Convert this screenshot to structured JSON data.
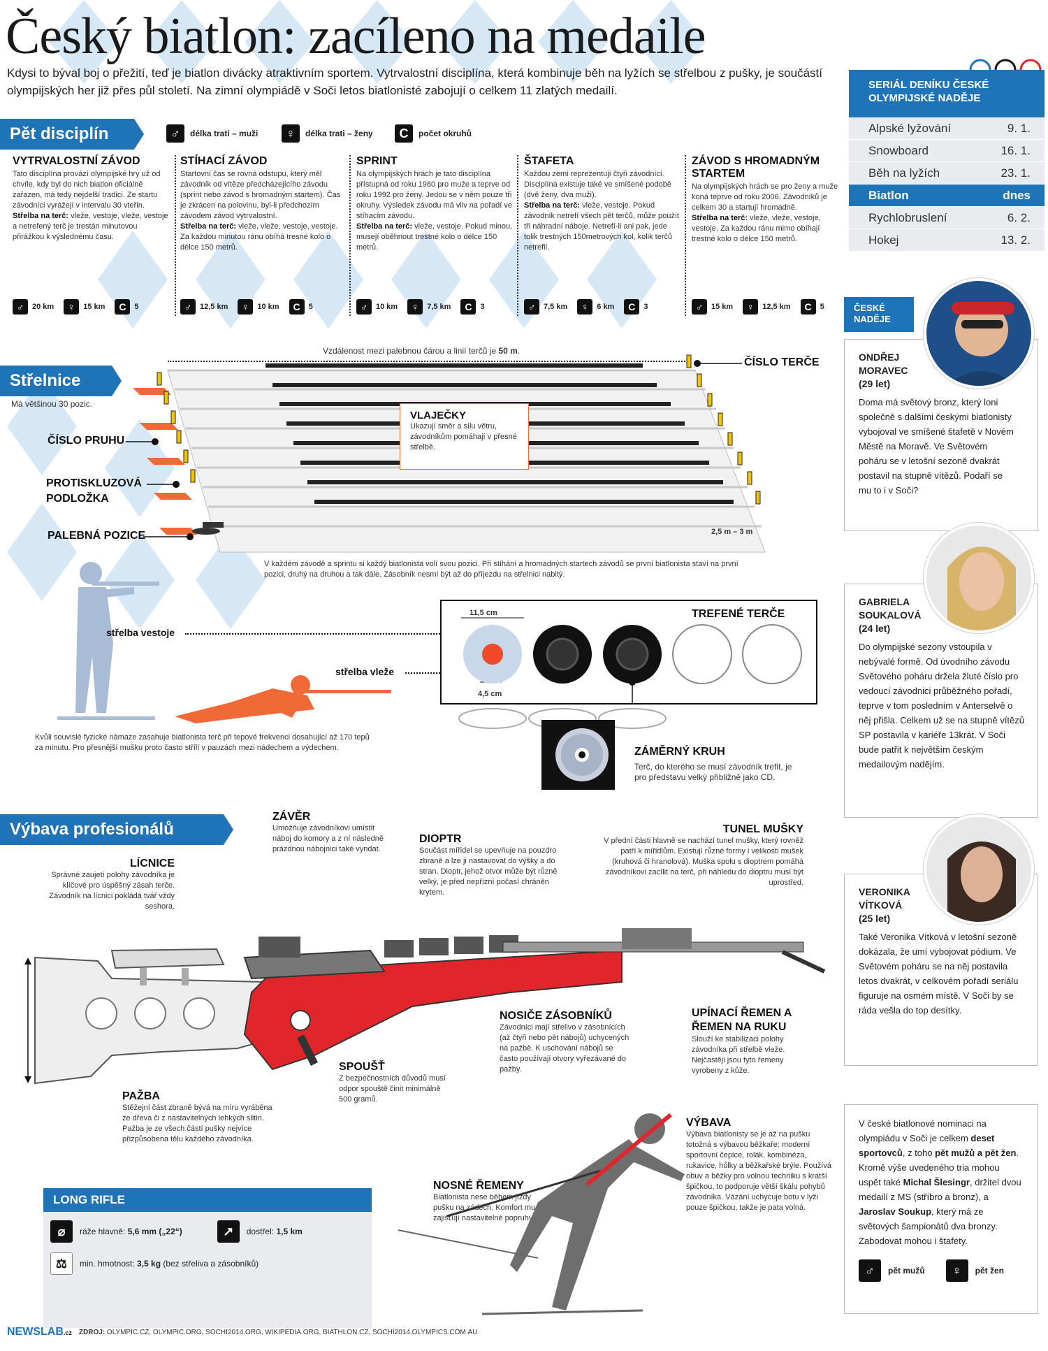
{
  "title": "Český biatlon: zacíleno na medaile",
  "intro": "Kdysi to býval boj o přežití, teď je biatlon divácky atraktivním sportem. Vytrvalostní disciplína, která kombinuje běh na lyžích se střelbou z pušky, je součástí olympijských her již přes půl století. Na zimní olympiádě v Soči letos biatlonisté zabojují o celkem 11 zlatých medailí.",
  "disciplines_section": {
    "heading": "Pět disciplín",
    "legend": [
      {
        "icon": "male-symbol-icon",
        "glyph": "♂",
        "label": "délka trati – muži"
      },
      {
        "icon": "female-symbol-icon",
        "glyph": "♀",
        "label": "délka trati – ženy"
      },
      {
        "icon": "laps-icon",
        "glyph": "C",
        "label": "počet okruhů"
      }
    ],
    "items": [
      {
        "name": "VYTRVALOSTNÍ ZÁVOD",
        "text": "Tato disciplína provází olympijské hry už od chvíle, kdy byl do nich biatlon oficiálně zařazen, má tedy nejdelší tradici. Ze startu závodníci vyrážejí v intervalu 30 vteřin.",
        "shoot_label": "Střelba na terč:",
        "shoot_text": " vleže, vestoje, vleže, vestoje a netrefený terč je trestán minutovou přirážkou k výslednému času.",
        "men": "20 km",
        "women": "15 km",
        "laps": "5"
      },
      {
        "name": "STÍHACÍ ZÁVOD",
        "text": "Startovní čas se rovná odstupu, který měl závodník od vítěze předcházejícího závodu (sprint nebo závod s hromadným startem). Čas je zkrácen na polovinu, byl-li předchozím závodem závod vytrvalostní.",
        "shoot_label": "Střelba na terč:",
        "shoot_text": " vleže, vleže, vestoje, vestoje. Za každou minutou ránu obíhá tresné kolo o délce 150 metrů.",
        "men": "12,5 km",
        "women": "10 km",
        "laps": "5"
      },
      {
        "name": "SPRINT",
        "text": "Na olympijských hrách je tato disciplína přístupná od roku 1980 pro muže a teprve od roku 1992 pro ženy. Jedou se v něm pouze tři okruhy. Výsledek závodu má vliv na pořadí ve stíhacím závodu.",
        "shoot_label": "Střelba na terč:",
        "shoot_text": " vleže, vestoje. Pokud minou, musejí oběhnout trestné kolo o délce 150 metrů.",
        "men": "10 km",
        "women": "7,5 km",
        "laps": "3"
      },
      {
        "name": "ŠTAFETA",
        "text": "Každou zemi reprezentují čtyři závodníci. Disciplína existuje také ve smíšené podobě (dvě ženy, dva muži).",
        "shoot_label": "Střelba na terč:",
        "shoot_text": " vleže, vestoje. Pokud závodník netrefí všech pět terčů, může použít tři náhradní náboje. Netrefí-li ani pak, jede tolik trestných 150metrových kol, kolik terčů netrefil.",
        "men": "7,5 km",
        "women": "6 km",
        "laps": "3"
      },
      {
        "name": "ZÁVOD S HROMADNÝM STARTEM",
        "text": "Na olympijských hrách se pro ženy a muže koná teprve od roku 2006. Závodníků je celkem 30 a startují hromadně.",
        "shoot_label": "Střelba na terč:",
        "shoot_text": " vleže, vleže, vestoje, vestoje. Za každou ránu mimo obíhají trestné kolo o délce 150 metrů.",
        "men": "15 km",
        "women": "12,5 km",
        "laps": "5"
      }
    ]
  },
  "range_section": {
    "heading": "Střelnice",
    "subtitle": "Má většinou 30 pozic.",
    "distance_prefix": "Vzdálenost mezi palebnou čárou a linií terčů je ",
    "distance_value": "50 m",
    "distance_suffix": ".",
    "target_number": "ČÍSLO TERČE",
    "lane_number": "ČÍSLO PRUHU",
    "mat": "PROTISKLUZOVÁ PODLOŽKA",
    "firing_position": "PALEBNÁ POZICE",
    "flags_title": "VLAJEČKY",
    "flags_text": "Ukazují směr a sílu větru, závodníkům pomáhají v přesné střelbě.",
    "lane_width": "2,5 m – 3 m",
    "positions_note": "V každém závodě a sprintu si každý biatlonista volí svou pozici. Při stíhání a hromadných startech závodů se první biatlonista staví na první pozici, druhý na druhou a tak dále. Zásobník nesmí být až do příjezdu na střelnici nabitý.",
    "standing": "střelba vestoje",
    "prone": "střelba vleže",
    "heart_note": "Kvůli souvislé fyzické námaze zasahuje biatlonista terč při tepové frekvenci dosahující až 170 tepů za minutu. Pro přesnější mušku proto často střílí v pauzách mezi nádechem a výdechem.",
    "hit_targets": "TREFENÉ TERČE",
    "target_size": "11,5 cm",
    "inner_size": "4,5 cm",
    "aim_title": "ZÁMĚRNÝ KRUH",
    "aim_text": "Terč, do kterého se musí závodník trefit, je pro představu velký přibližně jako CD."
  },
  "equipment_section": {
    "heading": "Výbava profesionálů",
    "parts": [
      {
        "key": "bolt",
        "title": "ZÁVĚR",
        "text": "Umožňuje závodníkovi umístit náboj do komory a z ní následně prázdnou nábojnici také vyndat."
      },
      {
        "key": "diopter",
        "title": "DIOPTR",
        "text": "Součást mířidel se upevňuje na pouzdro zbraně a lze ji nastavovat do výšky a do stran. Dioptr, jehož otvor může být různě velký, je před nepřízní počasí chráněn krytem."
      },
      {
        "key": "tunnel",
        "title": "TUNEL MUŠKY",
        "text": "V přední části hlavně se nachází tunel mušky, který rovněž patří k mířidlům. Existují různé formy i velikosti mušek (kruhová či hranolová). Muška spolu s dioptrem pomáhá závodníkovi zacílit na terč, při náhledu do dioptru musí být uprostřed."
      },
      {
        "key": "cheek",
        "title": "LÍCNICE",
        "text": "Správné zaujetí polohy závodníka je klíčové pro úspěšný zásah terče. Závodník na lícnici pokládá tvář vždy seshora."
      },
      {
        "key": "stock",
        "title": "PAŽBA",
        "text": "Stěžejní část zbraně bývá na míru vyráběna ze dřeva či z nastavitelných lehkých slitin. Pažba je ze všech částí pušky nejvíce přizpůsobena tělu každého závodníka."
      },
      {
        "key": "trigger",
        "title": "SPOUŠŤ",
        "text": "Z bezpečnostních důvodů musí odpor spouště činit minimálně 500 gramů."
      },
      {
        "key": "mag",
        "title": "NOSIČE ZÁSOBNÍKŮ",
        "text": "Závodníci mají střelivo v zásobnících (až čtyři nebo pět nábojů) uchycených na pažbě. K uschování nábojů se často používají otvory vyřezávané do pažby."
      },
      {
        "key": "sling",
        "title": "UPÍNACÍ ŘEMEN A ŘEMEN NA RUKU",
        "text": "Slouží ke stabilizaci polohy závodníka při střelbě vleže. Nejčastěji jsou tyto řemeny vyrobeny z kůže."
      },
      {
        "key": "harness",
        "title": "NOSNÉ ŘEMENY",
        "text": "Biatlonista nese během jízdy pušku na zádech. Komfort mu zajišťují nastavitelné popruhy."
      },
      {
        "key": "gear",
        "title": "VÝBAVA",
        "text": "Výbava biatlonisty se je až na pušku totožná s výbavou běžkaře: moderní sportovní čepice, rolák, kombinéza, rukavice, hůlky a běžkařské brýle. Používá obuv a běžky pro volnou techniku s kratší špičkou, to podporuje větší škálu pohybů závodníka. Vázání uchycuje botu v lyži pouze špičkou, takže je pata volná."
      }
    ],
    "long_rifle": {
      "heading": "LONG RIFLE",
      "caliber_label": "ráže hlavně: ",
      "caliber_value": "5,6 mm („22“)",
      "range_label": "dostřel: ",
      "range_value": "1,5 km",
      "weight_label": "min. hmotnost: ",
      "weight_value": "3,5 kg",
      "weight_note": " (bez střeliva a zásobníků)"
    }
  },
  "series": {
    "heading": "SERIÁL DENÍKU ČESKÉ OLYMPIJSKÉ NADĚJE",
    "rows": [
      {
        "sport": "Alpské lyžování",
        "date": "9. 1."
      },
      {
        "sport": "Snowboard",
        "date": "16. 1."
      },
      {
        "sport": "Běh na lyžích",
        "date": "23. 1."
      },
      {
        "sport": "Biatlon",
        "date": "dnes",
        "active": true
      },
      {
        "sport": "Rychlobruslení",
        "date": "6. 2."
      },
      {
        "sport": "Hokej",
        "date": "13. 2."
      }
    ]
  },
  "hopes": {
    "tag": "ČESKÉ NADĚJE",
    "athletes": [
      {
        "name": "ONDŘEJ MORAVEC",
        "age": "(29 let)",
        "text": "Doma má světový bronz, který loni společně s dalšími českými biatlonisty vybojoval ve smíšené štafetě v Novém Městě na Moravě. Ve Světovém poháru se v letošní sezoně dvakrát postavil na stupně vítězů. Podaří se mu to i v Soči?"
      },
      {
        "name": "GABRIELA SOUKALOVÁ",
        "age": "(24 let)",
        "text": "Do olympijské sezony vstoupila v nebývalé formě. Od úvodního závodu Světového poháru držela žluté číslo pro vedoucí závodnici průběžného pořadí, teprve v tom posledním v Anterselvě o něj přišla. Celkem už se na stupně vítězů SP postavila v kariéře 13krát. V Soči bude patřit k největším českým medailovým nadějím."
      },
      {
        "name": "VERONIKA VÍTKOVÁ",
        "age": "(25 let)",
        "text": "Také Veronika Vítková v letošní sezoně dokázala, že umí vybojovat pódium. Ve Světovém poháru se na něj postavila letos dvakrát, v celkovém pořadí seriálu figuruje na osmém místě. V Soči by se ráda vešla do top desítky."
      }
    ],
    "nomination_a": "V české biatlonové nominaci na olympiádu v Soči je celkem ",
    "nomination_b": "deset sportovců",
    "nomination_c": ", z toho ",
    "nomination_d": "pět mužů a pět žen",
    "nomination_e": ". Kromě výše uvedeného tria mohou uspět také ",
    "nomination_f": "Michal Šlesingr",
    "nomination_g": ", držitel dvou medailí z MS (stříbro a bronz), a ",
    "nomination_h": "Jaroslav Soukup",
    "nomination_i": ", který má ze světových šampionátů dva bronzy. Zabodovat mohou i štafety.",
    "men_label": "pět mužů",
    "women_label": "pět žen"
  },
  "footer": {
    "logo_a": "NEWS",
    "logo_b": "LAB",
    "logo_c": ".cz",
    "sources_label": "ZDROJ:",
    "sources": " OLYMPIC.CZ, OLYMPIC.ORG, SOCHI2014.ORG, WIKIPEDIA.ORG, BIATHLON.CZ, SOCHI2014.OLYMPICS.COM.AU"
  },
  "colors": {
    "accent": "#1f73b7",
    "orange": "#ef6a37",
    "red": "#e0262b",
    "gray": "#8a8a8a"
  }
}
